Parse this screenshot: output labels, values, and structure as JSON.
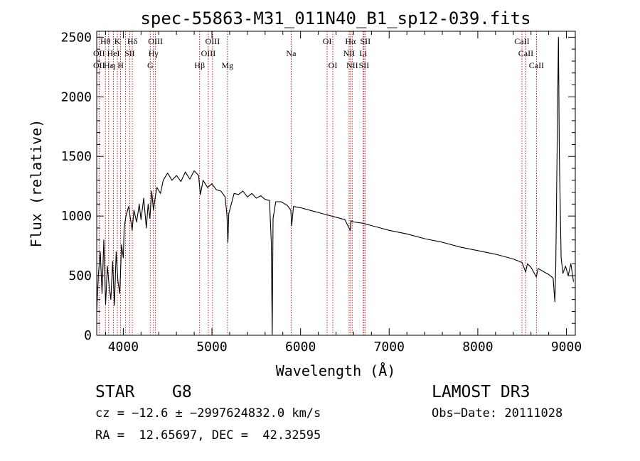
{
  "chart_data": {
    "type": "line",
    "title": "spec-55863-M31_011N40_B1_sp12-039.fits",
    "xlabel": "Wavelength (Å)",
    "ylabel": "Flux (relative)",
    "xlim": [
      3700,
      9100
    ],
    "ylim": [
      0,
      2550
    ],
    "xticks": [
      4000,
      5000,
      6000,
      7000,
      8000,
      9000
    ],
    "yticks": [
      0,
      500,
      1000,
      1500,
      2000,
      2500
    ],
    "x_tick_labels": [
      "4000",
      "5000",
      "6000",
      "7000",
      "8000",
      "9000"
    ],
    "y_tick_labels": [
      "0",
      "500",
      "1000",
      "1500",
      "2000",
      "2500"
    ],
    "series": [
      {
        "name": "spectrum",
        "color": "#000000",
        "points": [
          [
            3700,
            200
          ],
          [
            3720,
            520
          ],
          [
            3740,
            700
          ],
          [
            3760,
            350
          ],
          [
            3780,
            800
          ],
          [
            3800,
            260
          ],
          [
            3820,
            580
          ],
          [
            3840,
            420
          ],
          [
            3860,
            300
          ],
          [
            3880,
            620
          ],
          [
            3900,
            250
          ],
          [
            3920,
            700
          ],
          [
            3940,
            450
          ],
          [
            3960,
            350
          ],
          [
            3980,
            760
          ],
          [
            4000,
            650
          ],
          [
            4010,
            900
          ],
          [
            4030,
            1000
          ],
          [
            4060,
            1080
          ],
          [
            4100,
            880
          ],
          [
            4120,
            1050
          ],
          [
            4150,
            950
          ],
          [
            4180,
            1100
          ],
          [
            4200,
            970
          ],
          [
            4230,
            1150
          ],
          [
            4260,
            900
          ],
          [
            4280,
            1100
          ],
          [
            4300,
            980
          ],
          [
            4320,
            1210
          ],
          [
            4340,
            1050
          ],
          [
            4360,
            1160
          ],
          [
            4380,
            1240
          ],
          [
            4420,
            1190
          ],
          [
            4450,
            1300
          ],
          [
            4500,
            1360
          ],
          [
            4550,
            1300
          ],
          [
            4600,
            1340
          ],
          [
            4650,
            1290
          ],
          [
            4700,
            1370
          ],
          [
            4750,
            1310
          ],
          [
            4800,
            1380
          ],
          [
            4850,
            1340
          ],
          [
            4870,
            1180
          ],
          [
            4900,
            1300
          ],
          [
            4950,
            1240
          ],
          [
            5000,
            1270
          ],
          [
            5050,
            1220
          ],
          [
            5100,
            1210
          ],
          [
            5150,
            1160
          ],
          [
            5170,
            1000
          ],
          [
            5180,
            780
          ],
          [
            5190,
            1020
          ],
          [
            5250,
            1190
          ],
          [
            5300,
            1180
          ],
          [
            5350,
            1210
          ],
          [
            5400,
            1160
          ],
          [
            5450,
            1190
          ],
          [
            5500,
            1150
          ],
          [
            5550,
            1170
          ],
          [
            5600,
            1140
          ],
          [
            5650,
            1130
          ],
          [
            5670,
            780
          ],
          [
            5680,
            0
          ],
          [
            5690,
            980
          ],
          [
            5720,
            1120
          ],
          [
            5780,
            1120
          ],
          [
            5850,
            1090
          ],
          [
            5890,
            1050
          ],
          [
            5900,
            920
          ],
          [
            5920,
            1080
          ],
          [
            6000,
            1070
          ],
          [
            6100,
            1050
          ],
          [
            6200,
            1030
          ],
          [
            6300,
            1010
          ],
          [
            6400,
            990
          ],
          [
            6500,
            970
          ],
          [
            6560,
            880
          ],
          [
            6570,
            960
          ],
          [
            6600,
            950
          ],
          [
            6700,
            940
          ],
          [
            6800,
            920
          ],
          [
            6900,
            900
          ],
          [
            7000,
            880
          ],
          [
            7200,
            850
          ],
          [
            7400,
            810
          ],
          [
            7600,
            780
          ],
          [
            7800,
            740
          ],
          [
            8000,
            710
          ],
          [
            8200,
            680
          ],
          [
            8400,
            640
          ],
          [
            8500,
            610
          ],
          [
            8540,
            530
          ],
          [
            8560,
            600
          ],
          [
            8600,
            570
          ],
          [
            8660,
            490
          ],
          [
            8680,
            560
          ],
          [
            8750,
            530
          ],
          [
            8800,
            510
          ],
          [
            8850,
            480
          ],
          [
            8870,
            280
          ],
          [
            8880,
            600
          ],
          [
            8900,
            1900
          ],
          [
            8910,
            2500
          ],
          [
            8920,
            1500
          ],
          [
            8940,
            650
          ],
          [
            8960,
            520
          ],
          [
            8990,
            580
          ],
          [
            9020,
            500
          ],
          [
            9050,
            600
          ],
          [
            9080,
            450
          ]
        ]
      }
    ],
    "line_markers": [
      {
        "wavelength": 3727,
        "color": "#c00000"
      },
      {
        "wavelength": 3798,
        "color": "#c00000"
      },
      {
        "wavelength": 3835,
        "color": "#c00000"
      },
      {
        "wavelength": 3889,
        "color": "#c00000"
      },
      {
        "wavelength": 3933,
        "color": "#c00000"
      },
      {
        "wavelength": 3969,
        "color": "#c00000"
      },
      {
        "wavelength": 4026,
        "color": "#c00000"
      },
      {
        "wavelength": 4072,
        "color": "#c00000"
      },
      {
        "wavelength": 4102,
        "color": "#c00000"
      },
      {
        "wavelength": 4304,
        "color": "#c00000"
      },
      {
        "wavelength": 4340,
        "color": "#c00000"
      },
      {
        "wavelength": 4363,
        "color": "#c00000"
      },
      {
        "wavelength": 4861,
        "color": "#c00000"
      },
      {
        "wavelength": 4959,
        "color": "#c00000"
      },
      {
        "wavelength": 5007,
        "color": "#c00000"
      },
      {
        "wavelength": 5175,
        "color": "#c00000"
      },
      {
        "wavelength": 5894,
        "color": "#c00000"
      },
      {
        "wavelength": 6300,
        "color": "#c00000"
      },
      {
        "wavelength": 6364,
        "color": "#c00000"
      },
      {
        "wavelength": 6548,
        "color": "#c00000"
      },
      {
        "wavelength": 6563,
        "color": "#c00000"
      },
      {
        "wavelength": 6583,
        "color": "#c00000"
      },
      {
        "wavelength": 6707,
        "color": "#c00000"
      },
      {
        "wavelength": 6716,
        "color": "#c00000"
      },
      {
        "wavelength": 6731,
        "color": "#c00000"
      },
      {
        "wavelength": 8498,
        "color": "#c00000"
      },
      {
        "wavelength": 8542,
        "color": "#c00000"
      },
      {
        "wavelength": 8662,
        "color": "#c00000"
      }
    ],
    "line_labels": [
      {
        "text": "Hθ",
        "wavelength": 3798,
        "row": 1
      },
      {
        "text": "K",
        "wavelength": 3933,
        "row": 1
      },
      {
        "text": "Hδ",
        "wavelength": 4102,
        "row": 1
      },
      {
        "text": "OIII",
        "wavelength": 4363,
        "row": 1
      },
      {
        "text": "OIII",
        "wavelength": 5007,
        "row": 1
      },
      {
        "text": "OI",
        "wavelength": 6300,
        "row": 1
      },
      {
        "text": "Hα",
        "wavelength": 6563,
        "row": 1
      },
      {
        "text": "SII",
        "wavelength": 6731,
        "row": 1
      },
      {
        "text": "CaII",
        "wavelength": 8498,
        "row": 1
      },
      {
        "text": "OII",
        "wavelength": 3727,
        "row": 2
      },
      {
        "text": "HeI",
        "wavelength": 3889,
        "row": 2
      },
      {
        "text": "SII",
        "wavelength": 4072,
        "row": 2
      },
      {
        "text": "Hγ",
        "wavelength": 4340,
        "row": 2
      },
      {
        "text": "OIII",
        "wavelength": 4959,
        "row": 2
      },
      {
        "text": "Na",
        "wavelength": 5894,
        "row": 2
      },
      {
        "text": "NII",
        "wavelength": 6548,
        "row": 2
      },
      {
        "text": "Li",
        "wavelength": 6707,
        "row": 2
      },
      {
        "text": "CaII",
        "wavelength": 8542,
        "row": 2
      },
      {
        "text": "OII",
        "wavelength": 3727,
        "row": 3
      },
      {
        "text": "Hε",
        "wavelength": 3835,
        "row": 3
      },
      {
        "text": "η",
        "wavelength": 3889,
        "row": 3
      },
      {
        "text": "H",
        "wavelength": 3969,
        "row": 3
      },
      {
        "text": "G",
        "wavelength": 4304,
        "row": 3
      },
      {
        "text": "Hβ",
        "wavelength": 4861,
        "row": 3
      },
      {
        "text": "Mg",
        "wavelength": 5175,
        "row": 3
      },
      {
        "text": "OI",
        "wavelength": 6364,
        "row": 3
      },
      {
        "text": "NII",
        "wavelength": 6583,
        "row": 3
      },
      {
        "text": "SII",
        "wavelength": 6716,
        "row": 3
      },
      {
        "text": "CaII",
        "wavelength": 8662,
        "row": 3
      }
    ]
  },
  "footer": {
    "class_label": "STAR",
    "subclass": "G8",
    "survey": "LAMOST DR3",
    "cz_line": "cz = −12.6 ± −2997624832.0 km/s",
    "obs_date": "Obs−Date: 20111028",
    "coords": "RA =  12.65697, DEC =  42.32595"
  }
}
